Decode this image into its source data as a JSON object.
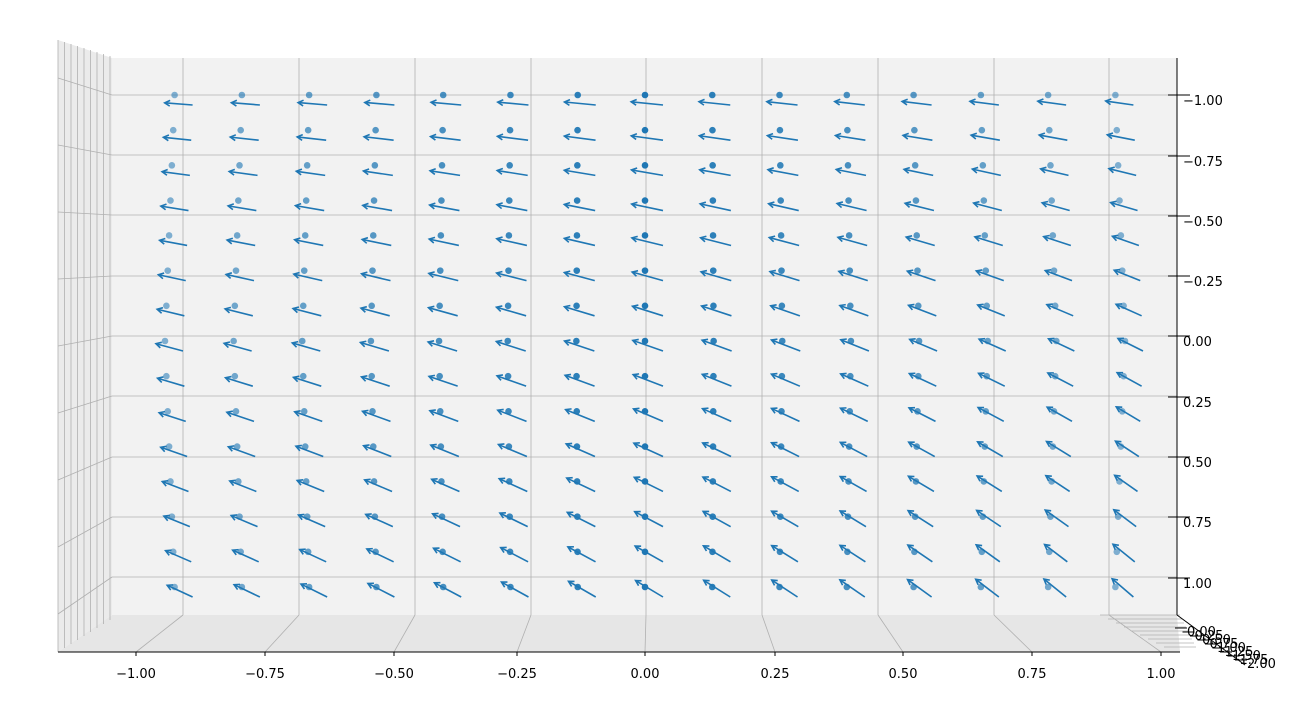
{
  "chart_data": {
    "type": "quiver3d",
    "title": "",
    "xlabel": "",
    "ylabel": "",
    "zlabel": "",
    "grid": true,
    "x_ticks": [
      "−1.00",
      "−0.75",
      "−0.50",
      "−0.25",
      "0.00",
      "0.25",
      "0.50",
      "0.75",
      "1.00"
    ],
    "x_tick_values": [
      -1.0,
      -0.75,
      -0.5,
      -0.25,
      0.0,
      0.25,
      0.5,
      0.75,
      1.0
    ],
    "y_ticks": [
      "−1.00",
      "−0.75",
      "−0.50",
      "−0.25",
      "0.00",
      "0.25",
      "0.50",
      "0.75",
      "1.00"
    ],
    "y_tick_values": [
      -1.0,
      -0.75,
      -0.5,
      -0.25,
      0.0,
      0.25,
      0.5,
      0.75,
      1.0
    ],
    "z_ticks": [
      "0.00",
      "0.25",
      "0.50",
      "0.75",
      "1.00",
      "1.25",
      "1.50",
      "1.75",
      "2.00"
    ],
    "z_tick_values": [
      0.0,
      0.25,
      0.5,
      0.75,
      1.0,
      1.25,
      1.5,
      1.75,
      2.0
    ],
    "xlim": [
      -1.1,
      1.1
    ],
    "ylim": [
      -1.1,
      1.1
    ],
    "zlim": [
      0.0,
      2.0
    ],
    "points_grid": {
      "x_values": [
        -1.0,
        -0.857,
        -0.714,
        -0.571,
        -0.429,
        -0.286,
        -0.143,
        0.0,
        0.143,
        0.286,
        0.429,
        0.571,
        0.714,
        0.857,
        1.0
      ],
      "y_values": [
        -1.0,
        -0.857,
        -0.714,
        -0.571,
        -0.429,
        -0.286,
        -0.143,
        0.0,
        0.143,
        0.286,
        0.429,
        0.571,
        0.714,
        0.857,
        1.0
      ],
      "z_values": [
        0.0,
        1.0,
        2.0
      ],
      "field": "u = -y_component; v = x_component (rotational field, arrows point up-left)"
    },
    "marker_color": "#1f77b4",
    "arrow_color": "#1f77b4",
    "pane_color": "#f2f2f2",
    "grid_color": "#b0b0b0"
  }
}
